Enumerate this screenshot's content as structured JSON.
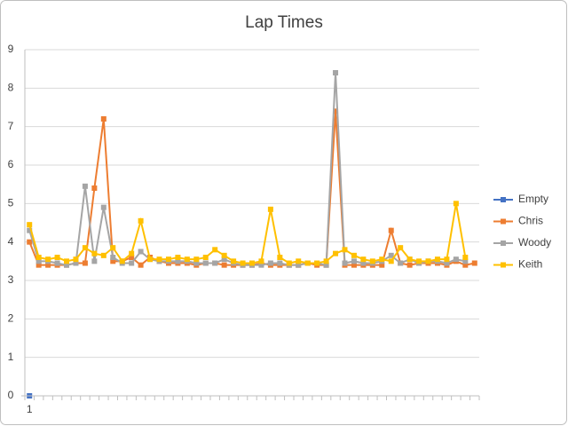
{
  "chart_data": {
    "type": "line",
    "title": "Lap Times",
    "categories": [
      "1",
      null,
      null,
      null,
      null,
      null,
      null,
      null,
      null,
      null,
      null,
      null,
      null,
      null,
      null,
      null,
      null,
      null,
      null,
      null,
      null,
      null,
      null,
      null,
      null,
      null,
      null,
      null,
      null,
      null,
      null,
      null,
      null,
      null,
      null,
      null,
      null,
      null,
      null,
      null,
      null,
      null,
      null,
      null,
      null,
      null,
      null,
      null,
      null
    ],
    "ylim": [
      0,
      9
    ],
    "yticks": [
      0,
      1,
      2,
      3,
      4,
      5,
      6,
      7,
      8,
      9
    ],
    "grid": true,
    "legend": "right",
    "series": [
      {
        "name": "Empty",
        "color": "#4472c4",
        "values": [
          0,
          null,
          null,
          null,
          null,
          null,
          null,
          null,
          null,
          null,
          null,
          null,
          null,
          null,
          null,
          null,
          null,
          null,
          null,
          null,
          null,
          null,
          null,
          null,
          null,
          null,
          null,
          null,
          null,
          null,
          null,
          null,
          null,
          null,
          null,
          null,
          null,
          null,
          null,
          null,
          null,
          null,
          null,
          null,
          null,
          null,
          null,
          null,
          null
        ]
      },
      {
        "name": "Chris",
        "color": "#ed7d31",
        "values": [
          4.0,
          3.4,
          3.4,
          3.4,
          3.4,
          3.45,
          3.45,
          5.4,
          7.2,
          3.5,
          3.5,
          3.6,
          3.4,
          3.6,
          3.5,
          3.45,
          3.45,
          3.45,
          3.4,
          3.45,
          3.45,
          3.4,
          3.4,
          3.4,
          3.4,
          3.45,
          3.4,
          3.4,
          3.4,
          3.4,
          3.45,
          3.4,
          3.4,
          7.4,
          3.4,
          3.4,
          3.4,
          3.4,
          3.4,
          4.3,
          3.45,
          3.4,
          3.45,
          3.45,
          3.45,
          3.4,
          3.5,
          3.4,
          3.45
        ]
      },
      {
        "name": "Woody",
        "color": "#a5a5a5",
        "values": [
          4.3,
          3.5,
          3.5,
          3.45,
          3.4,
          3.45,
          5.45,
          3.5,
          4.9,
          3.6,
          3.45,
          3.45,
          3.75,
          3.55,
          3.5,
          3.5,
          3.5,
          3.5,
          3.45,
          3.45,
          3.45,
          3.55,
          3.45,
          3.4,
          3.4,
          3.4,
          3.45,
          3.45,
          3.4,
          3.4,
          3.45,
          3.45,
          3.4,
          8.4,
          3.45,
          3.5,
          3.45,
          3.45,
          3.5,
          3.65,
          3.45,
          3.55,
          3.45,
          3.5,
          3.5,
          3.45,
          3.55,
          3.5,
          null
        ]
      },
      {
        "name": "Keith",
        "color": "#ffc000",
        "values": [
          4.45,
          3.6,
          3.55,
          3.6,
          3.5,
          3.55,
          3.85,
          3.7,
          3.65,
          3.85,
          3.5,
          3.7,
          4.55,
          3.55,
          3.55,
          3.55,
          3.6,
          3.55,
          3.55,
          3.6,
          3.8,
          3.65,
          3.5,
          3.45,
          3.45,
          3.5,
          4.85,
          3.6,
          3.45,
          3.5,
          3.45,
          3.45,
          3.5,
          3.7,
          3.8,
          3.65,
          3.55,
          3.5,
          3.55,
          3.5,
          3.85,
          3.55,
          3.5,
          3.5,
          3.55,
          3.55,
          5.0,
          3.6,
          null
        ]
      }
    ]
  }
}
